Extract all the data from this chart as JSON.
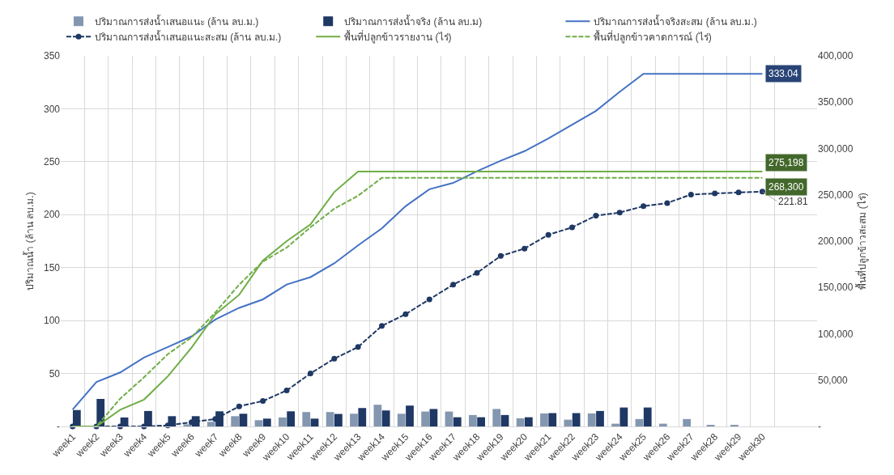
{
  "chart_data": {
    "type": "bar",
    "ylabel": "ปริมาณน้ำ (ล้าน ลบ.ม.)",
    "y2label": "พื้นที่ปลูกข้าวสะสม (ไร่)",
    "categories": [
      "week1",
      "week2",
      "week3",
      "week4",
      "week5",
      "week6",
      "week7",
      "week8",
      "week9",
      "week10",
      "week11",
      "week12",
      "week13",
      "week14",
      "week15",
      "week16",
      "week17",
      "week18",
      "week19",
      "week20",
      "week21",
      "week22",
      "week23",
      "week24",
      "week25",
      "week26",
      "week27",
      "week28",
      "week29",
      "week30"
    ],
    "ylim": [
      0,
      350
    ],
    "yticks": [
      {
        "value": 0,
        "label": "-"
      },
      50,
      100,
      150,
      200,
      250,
      300,
      350
    ],
    "y2lim": [
      0,
      400000
    ],
    "y2ticks": [
      {
        "value": 0,
        "label": "-"
      },
      {
        "value": 50000,
        "label": "50,000"
      },
      {
        "value": 100000,
        "label": "100,000"
      },
      {
        "value": 150000,
        "label": "150,000"
      },
      {
        "value": 200000,
        "label": "200,000"
      },
      {
        "value": 250000,
        "label": "250,000"
      },
      {
        "value": 300000,
        "label": "300,000"
      },
      {
        "value": 350000,
        "label": "350,000"
      },
      {
        "value": 400000,
        "label": "400,000"
      }
    ],
    "grid": true,
    "legend": "top",
    "tick_labels": true,
    "series": [
      {
        "name": "ปริมาณการส่งน้ำเสนอแนะ (ล้าน ลบ.ม.)",
        "color": "#8497b0",
        "values": [
          null,
          null,
          null,
          null,
          null,
          2,
          4.4,
          9.7,
          5.9,
          8.5,
          13.6,
          13.6,
          12,
          20.5,
          12,
          14.1,
          14.1,
          10.8,
          16.5,
          7.7,
          12.3,
          6.4,
          12.3,
          2.6,
          7,
          2.6,
          7,
          0.9,
          0.9,
          null
        ]
      },
      {
        "name": "ปริมาณการส่งน้ำจริง (ล้าน ลบ.ม)",
        "color": "#1f3864",
        "values": [
          15.5,
          26,
          8.5,
          14.6,
          9.7,
          9.7,
          14.3,
          12,
          7.4,
          14.3,
          7.4,
          11.8,
          17.4,
          15.1,
          19.7,
          16.5,
          8.7,
          8.7,
          10.8,
          8.7,
          12.6,
          12.6,
          14.6,
          17.9,
          17.9,
          null,
          null,
          null,
          null,
          null
        ]
      },
      {
        "name": "ปริมาณการส่งน้ำจริงสะสม (ล้าน ลบ.ม.)",
        "type": "line",
        "color": "#4472c4",
        "line_style": "solid",
        "marker": "none",
        "values": [
          16,
          42,
          51,
          65,
          75,
          85,
          101,
          112,
          120,
          134,
          141,
          154,
          171,
          187,
          208,
          224,
          230,
          241,
          251,
          260,
          272,
          285,
          298,
          316,
          333.04,
          333.04,
          333.04,
          333.04,
          333.04,
          333.04
        ],
        "value_labels": [
          null,
          null,
          null,
          null,
          null,
          null,
          null,
          null,
          null,
          null,
          null,
          null,
          null,
          null,
          null,
          null,
          null,
          null,
          null,
          null,
          null,
          null,
          null,
          null,
          null,
          null,
          null,
          null,
          null,
          "333.04"
        ]
      },
      {
        "name": "ปริมาณการส่งน้ำเสนอแนะสะสม (ล้าน ลบ.ม.)",
        "type": "line",
        "color": "#1f3864",
        "line_style": "dashed",
        "marker": "circle",
        "values": [
          0,
          0,
          0,
          0,
          1,
          4,
          7,
          19,
          24,
          34,
          50,
          64,
          75,
          95,
          106,
          120,
          134,
          145,
          161,
          168,
          181,
          188,
          199,
          202,
          208,
          211,
          219,
          220,
          221,
          221.81
        ],
        "value_labels": [
          null,
          null,
          null,
          null,
          null,
          null,
          null,
          null,
          null,
          null,
          null,
          null,
          null,
          null,
          null,
          null,
          null,
          null,
          null,
          null,
          null,
          null,
          null,
          null,
          null,
          null,
          null,
          null,
          null,
          "221.81"
        ]
      },
      {
        "name": "พื้นที่ปลูกข้าวรายงาน (ไร่)",
        "type": "line",
        "axis": "y2",
        "color": "#70ad47",
        "line_style": "solid",
        "marker": "none",
        "values": [
          0,
          0,
          18000,
          29000,
          54000,
          85000,
          121000,
          142000,
          179000,
          200000,
          218000,
          253000,
          275198,
          275198,
          275198,
          275198,
          275198,
          275198,
          275198,
          275198,
          275198,
          275198,
          275198,
          275198,
          275198,
          275198,
          275198,
          275198,
          275198,
          275198
        ],
        "value_labels": [
          null,
          null,
          null,
          null,
          null,
          null,
          null,
          null,
          null,
          null,
          null,
          null,
          null,
          null,
          null,
          null,
          null,
          null,
          null,
          null,
          null,
          null,
          null,
          null,
          null,
          null,
          null,
          null,
          null,
          "275,198"
        ]
      },
      {
        "name": "พื้นที่ปลูกข้าวคาดการณ์ (ไร่)",
        "type": "line",
        "axis": "y2",
        "color": "#70ad47",
        "line_style": "dashed",
        "marker": "none",
        "values": [
          0,
          0,
          30000,
          53000,
          78000,
          96000,
          123000,
          153000,
          178000,
          193000,
          215000,
          235000,
          249000,
          268300,
          268300,
          268300,
          268300,
          268300,
          268300,
          268300,
          268300,
          268300,
          268300,
          268300,
          268300,
          268300,
          268300,
          268300,
          268300,
          268300
        ],
        "value_labels": [
          null,
          null,
          null,
          null,
          null,
          null,
          null,
          null,
          null,
          null,
          null,
          null,
          null,
          null,
          null,
          null,
          null,
          null,
          null,
          null,
          null,
          null,
          null,
          null,
          null,
          null,
          null,
          null,
          null,
          "268,300"
        ]
      }
    ]
  }
}
